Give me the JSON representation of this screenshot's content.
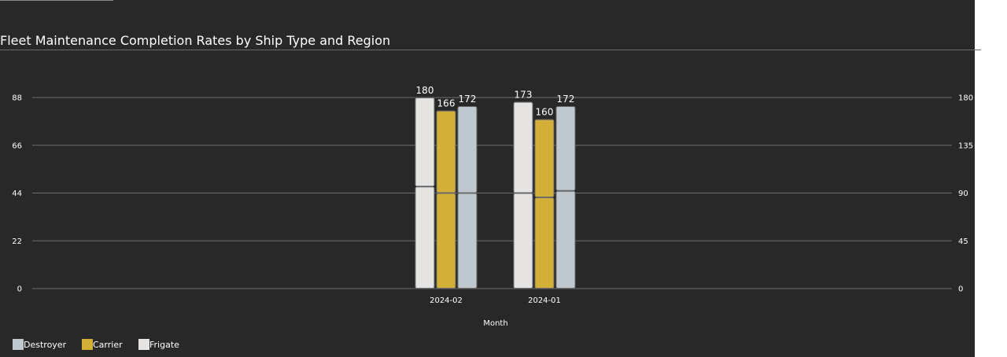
{
  "chart_data": {
    "type": "bar",
    "stacked": true,
    "title": "Fleet Maintenance Completion Rates by Ship Type and Region",
    "xlabel": "Month",
    "ylabel": "",
    "categories": [
      "2024-02",
      "2024-01"
    ],
    "series": [
      {
        "name": "Frigate",
        "color": "#e5e4e2",
        "segments": [
          [
            47,
            41
          ],
          [
            44,
            42
          ]
        ],
        "totals": [
          180,
          173
        ]
      },
      {
        "name": "Carrier",
        "color": "#d4af37",
        "segments": [
          [
            44,
            38
          ],
          [
            42,
            36
          ]
        ],
        "totals": [
          166,
          160
        ]
      },
      {
        "name": "Destroyer",
        "color": "#bfc8cf",
        "segments": [
          [
            44,
            40
          ],
          [
            45,
            39
          ]
        ],
        "totals": [
          172,
          172
        ]
      }
    ],
    "ylim_left": [
      0,
      88
    ],
    "yticks_left": [
      "0",
      "22",
      "44",
      "66",
      "88"
    ],
    "ylim_right": [
      0,
      180
    ],
    "yticks_right": [
      "0",
      "45",
      "90",
      "135",
      "180"
    ],
    "grid": true,
    "legend": {
      "position": "bottom-left",
      "items": [
        {
          "label": "Destroyer",
          "color": "#bfc8cf"
        },
        {
          "label": "Carrier",
          "color": "#d4af37"
        },
        {
          "label": "Frigate",
          "color": "#e5e4e2"
        }
      ]
    }
  }
}
